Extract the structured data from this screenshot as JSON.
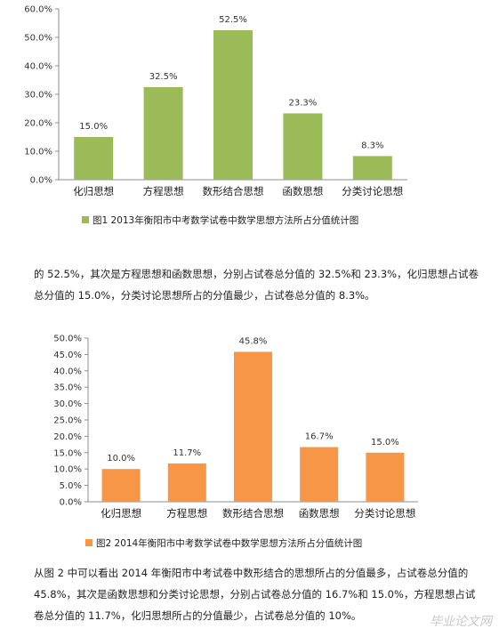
{
  "chart_data": [
    {
      "type": "bar",
      "categories": [
        "化归思想",
        "方程思想",
        "数形结合思想",
        "函数思想",
        "分类讨论思想"
      ],
      "values": [
        15.0,
        32.5,
        52.5,
        23.3,
        8.3
      ],
      "data_labels": [
        "15.0%",
        "32.5%",
        "52.5%",
        "23.3%",
        "8.3%"
      ],
      "ylim": [
        0,
        60
      ],
      "y_ticks": [
        "0.0%",
        "10.0%",
        "20.0%",
        "30.0%",
        "40.0%",
        "50.0%",
        "60.0%"
      ],
      "y_tick_values": [
        0,
        10,
        20,
        30,
        40,
        50,
        60
      ],
      "color": "#9bbb59",
      "legend": "图1 2013年衡阳市中考数学试卷中数学思想方法所占分值统计图",
      "legend_position": "bottom",
      "grid": false
    },
    {
      "type": "bar",
      "categories": [
        "化归思想",
        "方程思想",
        "数形结合思想",
        "函数思想",
        "分类讨论思想"
      ],
      "values": [
        10.0,
        11.7,
        45.8,
        16.7,
        15.0
      ],
      "data_labels": [
        "10.0%",
        "11.7%",
        "45.8%",
        "16.7%",
        "15.0%"
      ],
      "ylim": [
        0,
        50
      ],
      "y_ticks": [
        "0.0%",
        "5.0%",
        "10.0%",
        "15.0%",
        "20.0%",
        "25.0%",
        "30.0%",
        "35.0%",
        "40.0%",
        "45.0%",
        "50.0%"
      ],
      "y_tick_values": [
        0,
        5,
        10,
        15,
        20,
        25,
        30,
        35,
        40,
        45,
        50
      ],
      "color": "#f79646",
      "legend": "图2 2014年衡阳市中考数学试卷中数学思想方法所占分值统计图",
      "legend_position": "bottom",
      "grid": false
    }
  ],
  "paragraphs": {
    "p1": "的 52.5%，其次是方程思想和函数思想，分别占试卷总分值的 32.5%和 23.3%，化归思想占试卷总分值的 15.0%，分类讨论思想所占的分值最少，占试卷总分值的 8.3%。",
    "p2": "从图 2 中可以看出 2014 年衡阳市中考试卷中数形结合的思想所占的分值最多，占试卷总分值的 45.8%，其次是函数思想和分类讨论思想，分别占试卷总分值的 16.7%和 15.0%，方程思想占试卷总分值的 11.7%，化归思想所占的分值最少，占试卷总分值的 10%。"
  },
  "watermark": "毕业论文网"
}
